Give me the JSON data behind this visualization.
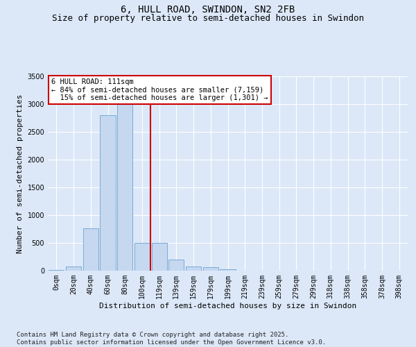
{
  "title": "6, HULL ROAD, SWINDON, SN2 2FB",
  "subtitle": "Size of property relative to semi-detached houses in Swindon",
  "xlabel": "Distribution of semi-detached houses by size in Swindon",
  "ylabel": "Number of semi-detached properties",
  "bins": [
    "0sqm",
    "20sqm",
    "40sqm",
    "60sqm",
    "80sqm",
    "100sqm",
    "119sqm",
    "139sqm",
    "159sqm",
    "179sqm",
    "199sqm",
    "219sqm",
    "239sqm",
    "259sqm",
    "279sqm",
    "299sqm",
    "318sqm",
    "338sqm",
    "358sqm",
    "378sqm",
    "398sqm"
  ],
  "counts": [
    10,
    70,
    760,
    2800,
    3200,
    500,
    500,
    195,
    80,
    60,
    30,
    0,
    0,
    0,
    0,
    0,
    0,
    0,
    0,
    0,
    0
  ],
  "bar_color": "#c5d8f0",
  "bar_edge_color": "#7aaad4",
  "pct_smaller": 84,
  "n_smaller": 7159,
  "pct_larger": 15,
  "n_larger": 1301,
  "annotation_box_color": "#ffffff",
  "annotation_box_edge_color": "#cc0000",
  "vline_color": "#cc0000",
  "vline_x": 5.5,
  "ylim": [
    0,
    3500
  ],
  "yticks": [
    0,
    500,
    1000,
    1500,
    2000,
    2500,
    3000,
    3500
  ],
  "bg_color": "#dce8f8",
  "fig_bg_color": "#dce8f8",
  "footer": "Contains HM Land Registry data © Crown copyright and database right 2025.\nContains public sector information licensed under the Open Government Licence v3.0.",
  "title_fontsize": 10,
  "subtitle_fontsize": 9,
  "axis_label_fontsize": 8,
  "tick_fontsize": 7,
  "footer_fontsize": 6.5,
  "ann_fontsize": 7.5
}
